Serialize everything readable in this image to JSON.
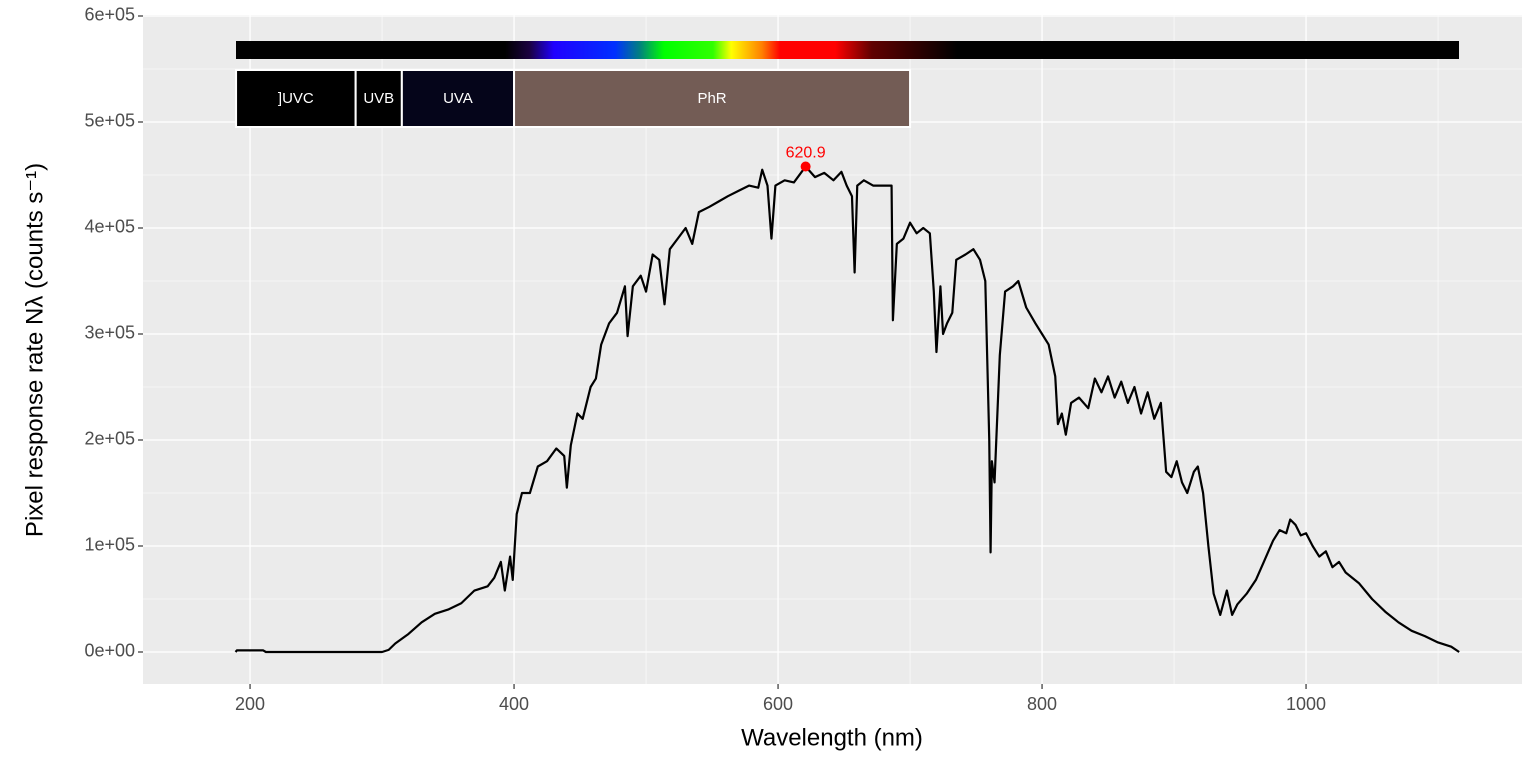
{
  "chart_data": {
    "type": "line",
    "xlabel": "Wavelength (nm)",
    "ylabel": "Pixel  response  rate  Nλ  (counts  s⁻¹)",
    "color": "#000000",
    "xlim": [
      118.9,
      1163.6
    ],
    "ylim": [
      -30189,
      600943
    ],
    "xticks": [
      200,
      400,
      600,
      800,
      1000
    ],
    "minor_xticks": [
      300,
      500,
      700,
      900,
      1100
    ],
    "yticks": [
      {
        "value": 0,
        "label": "0e+00"
      },
      {
        "value": 100000,
        "label": "1e+05"
      },
      {
        "value": 200000,
        "label": "2e+05"
      },
      {
        "value": 300000,
        "label": "3e+05"
      },
      {
        "value": 400000,
        "label": "4e+05"
      },
      {
        "value": 500000,
        "label": "5e+05"
      },
      {
        "value": 600000,
        "label": "6e+05"
      }
    ],
    "minor_yticks": [
      50000,
      150000,
      250000,
      350000,
      450000,
      550000
    ],
    "grid": true,
    "peak": {
      "x": 620.9,
      "value": 458000,
      "color": "#ff0000"
    },
    "bands": [
      {
        "label": "]UVC",
        "start": 189.4,
        "end": 280,
        "color": "#000000"
      },
      {
        "label": "UVB",
        "start": 280,
        "end": 315,
        "color": "#000000"
      },
      {
        "label": "UVA",
        "start": 315,
        "end": 400,
        "color": "#05051a"
      },
      {
        "label": "PhR",
        "start": 400,
        "end": 700,
        "color": "#735c55"
      }
    ],
    "x": [
      189,
      190,
      210,
      212,
      300,
      305,
      310,
      320,
      330,
      340,
      350,
      360,
      370,
      380,
      385,
      390,
      393,
      397,
      399,
      402,
      406,
      412,
      418,
      425,
      432,
      438,
      440,
      443,
      448,
      452,
      458,
      462,
      466,
      472,
      478,
      484,
      486,
      490,
      496,
      500,
      505,
      510,
      514,
      518,
      524,
      530,
      535,
      540,
      548,
      555,
      562,
      570,
      578,
      585,
      588,
      592,
      595,
      598,
      605,
      612,
      620.9,
      628,
      635,
      642,
      648,
      652,
      656,
      658,
      660,
      665,
      672,
      680,
      686,
      687,
      690,
      695,
      700,
      705,
      710,
      715,
      718,
      720,
      723,
      725,
      728,
      732,
      735,
      742,
      748,
      753,
      757,
      760,
      761,
      762,
      764,
      768,
      772,
      778,
      782,
      788,
      795,
      800,
      805,
      810,
      812,
      815,
      818,
      822,
      828,
      835,
      840,
      845,
      850,
      855,
      860,
      865,
      870,
      875,
      880,
      885,
      890,
      894,
      898,
      902,
      906,
      910,
      915,
      918,
      922,
      926,
      930,
      935,
      940,
      944,
      948,
      955,
      962,
      968,
      975,
      980,
      985,
      988,
      992,
      996,
      1000,
      1005,
      1010,
      1015,
      1020,
      1025,
      1030,
      1040,
      1050,
      1060,
      1070,
      1080,
      1090,
      1100,
      1110,
      1116
    ],
    "values": [
      0,
      1500,
      1500,
      0,
      0,
      2000,
      8000,
      17000,
      28000,
      36000,
      40000,
      46000,
      58000,
      62000,
      70000,
      85000,
      58000,
      90000,
      68000,
      130000,
      150000,
      150000,
      175000,
      180000,
      192000,
      185000,
      155000,
      195000,
      225000,
      220000,
      250000,
      258000,
      290000,
      310000,
      320000,
      345000,
      298000,
      345000,
      355000,
      340000,
      375000,
      370000,
      328000,
      380000,
      390000,
      400000,
      385000,
      415000,
      420000,
      425000,
      430000,
      435000,
      440000,
      438000,
      455000,
      440000,
      390000,
      440000,
      445000,
      443000,
      458000,
      448000,
      452000,
      445000,
      453000,
      440000,
      430000,
      358000,
      440000,
      445000,
      440000,
      440000,
      440000,
      313000,
      385000,
      390000,
      405000,
      395000,
      400000,
      395000,
      340000,
      283000,
      345000,
      300000,
      310000,
      320000,
      370000,
      375000,
      380000,
      370000,
      350000,
      200000,
      94000,
      180000,
      160000,
      280000,
      340000,
      345000,
      350000,
      325000,
      310000,
      300000,
      290000,
      260000,
      215000,
      225000,
      205000,
      235000,
      240000,
      230000,
      258000,
      245000,
      260000,
      240000,
      255000,
      235000,
      250000,
      225000,
      245000,
      220000,
      235000,
      170000,
      165000,
      180000,
      160000,
      150000,
      170000,
      175000,
      150000,
      100000,
      55000,
      35000,
      58000,
      35000,
      45000,
      55000,
      68000,
      85000,
      105000,
      115000,
      112000,
      125000,
      120000,
      110000,
      112000,
      100000,
      90000,
      95000,
      80000,
      85000,
      75000,
      65000,
      50000,
      38000,
      28000,
      20000,
      15000,
      9000,
      5000,
      0
    ]
  }
}
